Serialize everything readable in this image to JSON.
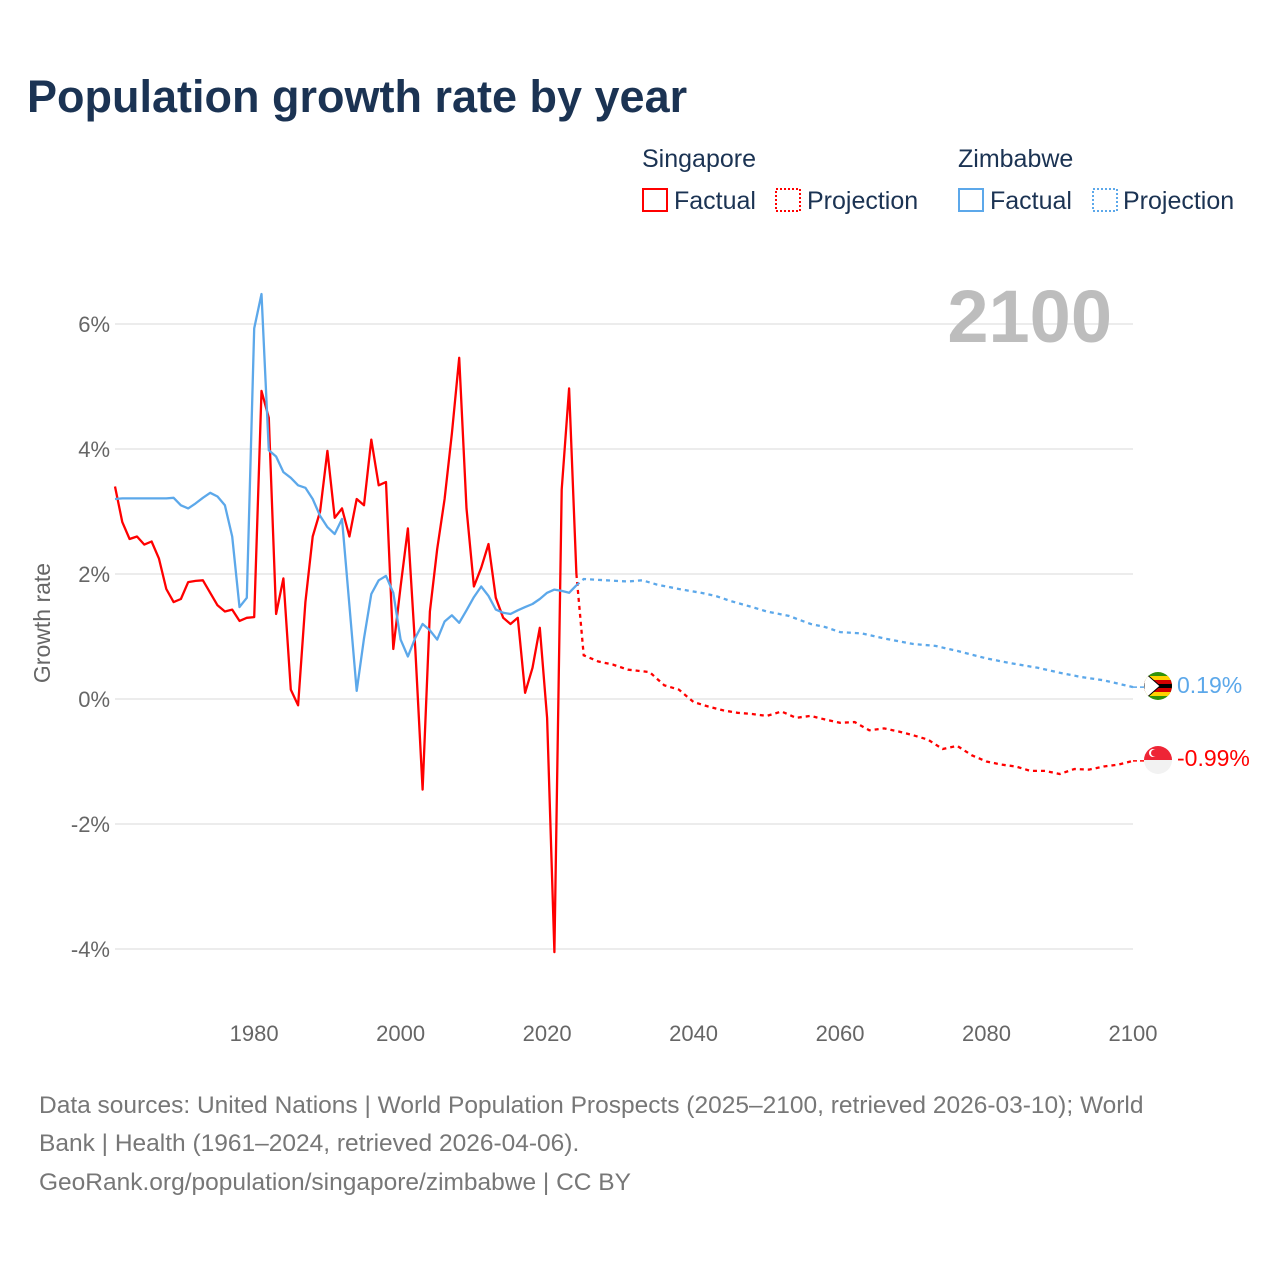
{
  "chart_data": {
    "type": "line",
    "title": "Population growth rate by year",
    "ylabel": "Growth rate",
    "xlabel": "",
    "xlim": [
      1961,
      2100
    ],
    "ylim": [
      -5,
      7
    ],
    "xticks": [
      1980,
      2000,
      2020,
      2040,
      2060,
      2080,
      2100
    ],
    "yticks": [
      -4,
      -2,
      0,
      2,
      4,
      6
    ],
    "ytick_labels": [
      "-4%",
      "-2%",
      "0%",
      "2%",
      "4%",
      "6%"
    ],
    "grid": true,
    "year_label": "2100",
    "legend": {
      "placement": "top-right",
      "groups": [
        {
          "name": "Singapore",
          "factual": "Factual",
          "projection": "Projection"
        },
        {
          "name": "Zimbabwe",
          "factual": "Factual",
          "projection": "Projection"
        }
      ]
    },
    "series": [
      {
        "name": "Singapore",
        "color": "#ff0000",
        "end_label": "-0.99%",
        "factual": {
          "start_year": 1961,
          "values": [
            3.4,
            2.83,
            2.56,
            2.6,
            2.47,
            2.52,
            2.25,
            1.76,
            1.55,
            1.6,
            1.87,
            1.89,
            1.9,
            1.7,
            1.5,
            1.4,
            1.43,
            1.25,
            1.3,
            1.31,
            4.93,
            4.5,
            1.36,
            1.93,
            0.15,
            -0.1,
            1.55,
            2.6,
            3.0,
            3.97,
            2.9,
            3.05,
            2.6,
            3.2,
            3.1,
            4.15,
            3.42,
            3.47,
            0.8,
            1.8,
            2.73,
            0.8,
            -1.45,
            1.4,
            2.4,
            3.2,
            4.25,
            5.46,
            3.05,
            1.8,
            2.1,
            2.48,
            1.62,
            1.3,
            1.2,
            1.3,
            0.1,
            0.5,
            1.14,
            -0.3,
            -4.05,
            3.35,
            4.97,
            2.0
          ]
        },
        "projection": {
          "x": [
            2024,
            2025,
            2027,
            2029,
            2031,
            2034,
            2036,
            2038,
            2040,
            2042,
            2044,
            2046,
            2048,
            2050,
            2052,
            2054,
            2056,
            2058,
            2060,
            2062,
            2064,
            2066,
            2068,
            2070,
            2072,
            2074,
            2076,
            2078,
            2080,
            2082,
            2084,
            2086,
            2088,
            2090,
            2092,
            2094,
            2096,
            2098,
            2100
          ],
          "y": [
            2.0,
            0.7,
            0.6,
            0.55,
            0.47,
            0.43,
            0.22,
            0.15,
            -0.05,
            -0.12,
            -0.18,
            -0.22,
            -0.24,
            -0.27,
            -0.2,
            -0.3,
            -0.27,
            -0.33,
            -0.38,
            -0.37,
            -0.5,
            -0.47,
            -0.52,
            -0.58,
            -0.65,
            -0.8,
            -0.75,
            -0.9,
            -1.0,
            -1.05,
            -1.08,
            -1.15,
            -1.15,
            -1.2,
            -1.12,
            -1.13,
            -1.08,
            -1.05,
            -0.99
          ]
        }
      },
      {
        "name": "Zimbabwe",
        "color": "#5ca8ea",
        "end_label": "0.19%",
        "factual": {
          "start_year": 1961,
          "values": [
            3.2,
            3.21,
            3.21,
            3.21,
            3.21,
            3.21,
            3.21,
            3.21,
            3.22,
            3.1,
            3.05,
            3.13,
            3.22,
            3.3,
            3.24,
            3.1,
            2.6,
            1.47,
            1.62,
            5.93,
            6.48,
            3.98,
            3.88,
            3.63,
            3.54,
            3.42,
            3.38,
            3.2,
            2.93,
            2.75,
            2.64,
            2.88,
            1.5,
            0.13,
            0.97,
            1.68,
            1.9,
            1.97,
            1.7,
            0.95,
            0.68,
            0.98,
            1.2,
            1.1,
            0.95,
            1.24,
            1.34,
            1.22,
            1.42,
            1.63,
            1.8,
            1.65,
            1.43,
            1.38,
            1.36,
            1.42,
            1.47,
            1.52,
            1.6,
            1.7,
            1.75,
            1.73,
            1.7,
            1.82
          ]
        },
        "projection": {
          "x": [
            2024,
            2025,
            2028,
            2031,
            2033,
            2035,
            2038,
            2041,
            2043,
            2045,
            2048,
            2050,
            2053,
            2056,
            2058,
            2060,
            2063,
            2066,
            2070,
            2073,
            2076,
            2080,
            2083,
            2087,
            2090,
            2093,
            2096,
            2100
          ],
          "y": [
            1.82,
            1.92,
            1.9,
            1.88,
            1.9,
            1.83,
            1.76,
            1.7,
            1.65,
            1.57,
            1.47,
            1.4,
            1.33,
            1.2,
            1.15,
            1.07,
            1.05,
            0.97,
            0.88,
            0.85,
            0.77,
            0.65,
            0.58,
            0.5,
            0.42,
            0.35,
            0.3,
            0.19
          ]
        }
      }
    ],
    "footer": {
      "line1": "Data sources: United Nations | World Population Prospects (2025–2100, retrieved 2026-03-10); World",
      "line2": "Bank | Health (1961–2024, retrieved 2026-04-06).",
      "line3": "GeoRank.org/population/singapore/zimbabwe | CC BY"
    }
  }
}
